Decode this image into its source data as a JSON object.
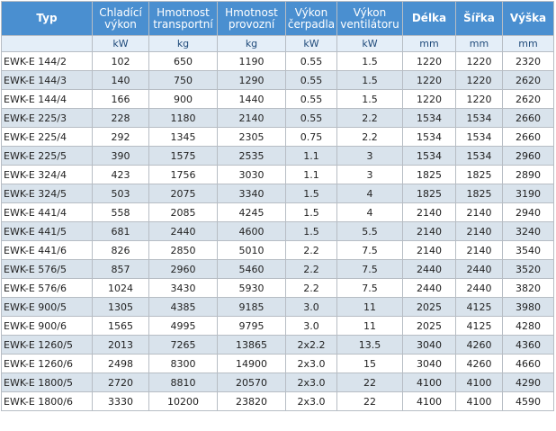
{
  "table": {
    "headers": [
      [
        "Typ"
      ],
      [
        "Chladící",
        "výkon"
      ],
      [
        "Hmotnost",
        "transportní"
      ],
      [
        "Hmotnost",
        "provozní"
      ],
      [
        "Výkon",
        "čerpadla"
      ],
      [
        "Výkon",
        "ventilátoru"
      ],
      [
        "Délka"
      ],
      [
        "Šířka"
      ],
      [
        "Výška"
      ]
    ],
    "units": [
      "",
      "kW",
      "kg",
      "kg",
      "kW",
      "kW",
      "mm",
      "mm",
      "mm"
    ],
    "rows": [
      [
        "EWK-E 144/2",
        "102",
        "650",
        "1190",
        "0.55",
        "1.5",
        "1220",
        "1220",
        "2320"
      ],
      [
        "EWK-E 144/3",
        "140",
        "750",
        "1290",
        "0.55",
        "1.5",
        "1220",
        "1220",
        "2620"
      ],
      [
        "EWK-E 144/4",
        "166",
        "900",
        "1440",
        "0.55",
        "1.5",
        "1220",
        "1220",
        "2620"
      ],
      [
        "EWK-E 225/3",
        "228",
        "1180",
        "2140",
        "0.55",
        "2.2",
        "1534",
        "1534",
        "2660"
      ],
      [
        "EWK-E 225/4",
        "292",
        "1345",
        "2305",
        "0.75",
        "2.2",
        "1534",
        "1534",
        "2660"
      ],
      [
        "EWK-E 225/5",
        "390",
        "1575",
        "2535",
        "1.1",
        "3",
        "1534",
        "1534",
        "2960"
      ],
      [
        "EWK-E 324/4",
        "423",
        "1756",
        "3030",
        "1.1",
        "3",
        "1825",
        "1825",
        "2890"
      ],
      [
        "EWK-E 324/5",
        "503",
        "2075",
        "3340",
        "1.5",
        "4",
        "1825",
        "1825",
        "3190"
      ],
      [
        "EWK-E 441/4",
        "558",
        "2085",
        "4245",
        "1.5",
        "4",
        "2140",
        "2140",
        "2940"
      ],
      [
        "EWK-E 441/5",
        "681",
        "2440",
        "4600",
        "1.5",
        "5.5",
        "2140",
        "2140",
        "3240"
      ],
      [
        "EWK-E 441/6",
        "826",
        "2850",
        "5010",
        "2.2",
        "7.5",
        "2140",
        "2140",
        "3540"
      ],
      [
        "EWK-E 576/5",
        "857",
        "2960",
        "5460",
        "2.2",
        "7.5",
        "2440",
        "2440",
        "3520"
      ],
      [
        "EWK-E 576/6",
        "1024",
        "3430",
        "5930",
        "2.2",
        "7.5",
        "2440",
        "2440",
        "3820"
      ],
      [
        "EWK-E 900/5",
        "1305",
        "4385",
        "9185",
        "3.0",
        "11",
        "2025",
        "4125",
        "3980"
      ],
      [
        "EWK-E 900/6",
        "1565",
        "4995",
        "9795",
        "3.0",
        "11",
        "2025",
        "4125",
        "4280"
      ],
      [
        "EWK-E 1260/5",
        "2013",
        "7265",
        "13865",
        "2x2.2",
        "13.5",
        "3040",
        "4260",
        "4360"
      ],
      [
        "EWK-E 1260/6",
        "2498",
        "8300",
        "14900",
        "2x3.0",
        "15",
        "3040",
        "4260",
        "4660"
      ],
      [
        "EWK-E 1800/5",
        "2720",
        "8810",
        "20570",
        "2x3.0",
        "22",
        "4100",
        "4100",
        "4290"
      ],
      [
        "EWK-E 1800/6",
        "3330",
        "10200",
        "23820",
        "2x3.0",
        "22",
        "4100",
        "4100",
        "4590"
      ]
    ]
  },
  "colors": {
    "header_bg": "#4a8fd0",
    "header_text": "#ffffff",
    "unit_row_bg": "#e4eef8",
    "row_alt_bg": "#d9e3ec",
    "grid": "#b7bdc4"
  }
}
